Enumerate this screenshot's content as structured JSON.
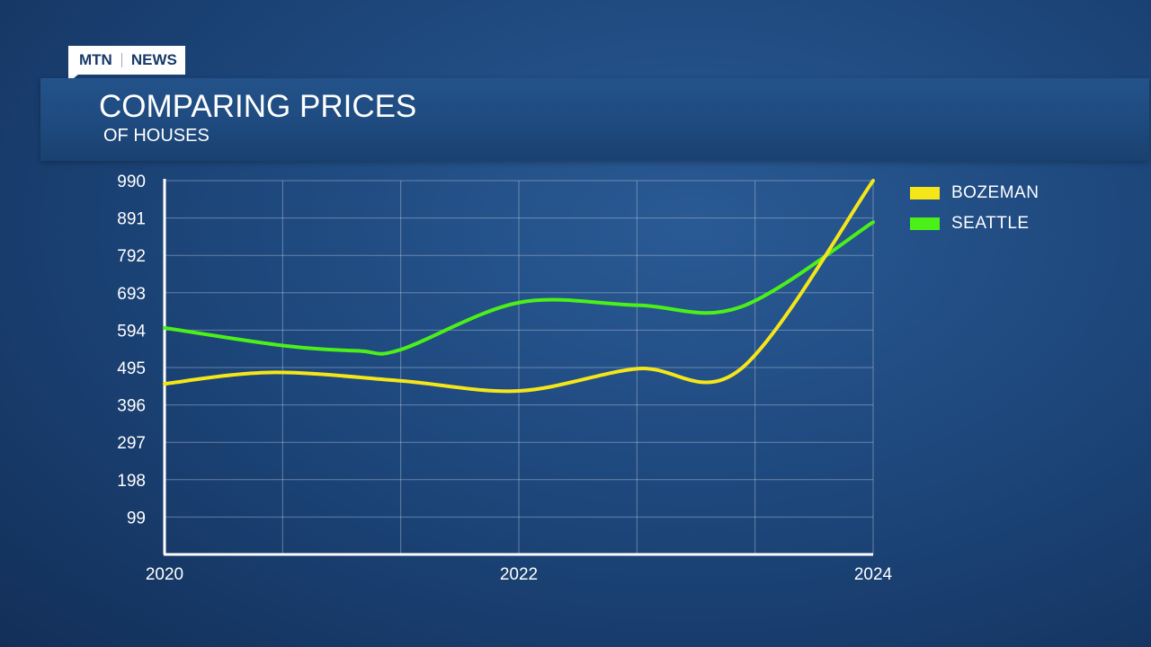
{
  "brand": {
    "left": "MTN",
    "right": "NEWS"
  },
  "header": {
    "title": "COMPARING PRICES",
    "subtitle": "OF HOUSES"
  },
  "legend": [
    {
      "label": "BOZEMAN",
      "color": "#f5e61a"
    },
    {
      "label": "SEATTLE",
      "color": "#4cf019"
    }
  ],
  "chart_data": {
    "type": "line",
    "x_ticks": [
      2020,
      2022,
      2024
    ],
    "y_ticks": [
      99,
      198,
      297,
      396,
      495,
      594,
      693,
      792,
      891,
      990
    ],
    "ylim": [
      0,
      990
    ],
    "xlim": [
      2020,
      2024
    ],
    "grid": true,
    "series": [
      {
        "name": "SEATTLE",
        "color": "#4cf019",
        "x": [
          2020,
          2020.67,
          2021.1,
          2021.33,
          2022,
          2022.67,
          2023.25,
          2024
        ],
        "y": [
          600,
          553,
          539,
          542,
          667,
          660,
          655,
          880
        ]
      },
      {
        "name": "BOZEMAN",
        "color": "#f5e61a",
        "x": [
          2020,
          2020.6,
          2021.33,
          2022,
          2022.67,
          2023.25,
          2024
        ],
        "y": [
          452,
          482,
          460,
          433,
          492,
          490,
          990
        ]
      }
    ]
  }
}
